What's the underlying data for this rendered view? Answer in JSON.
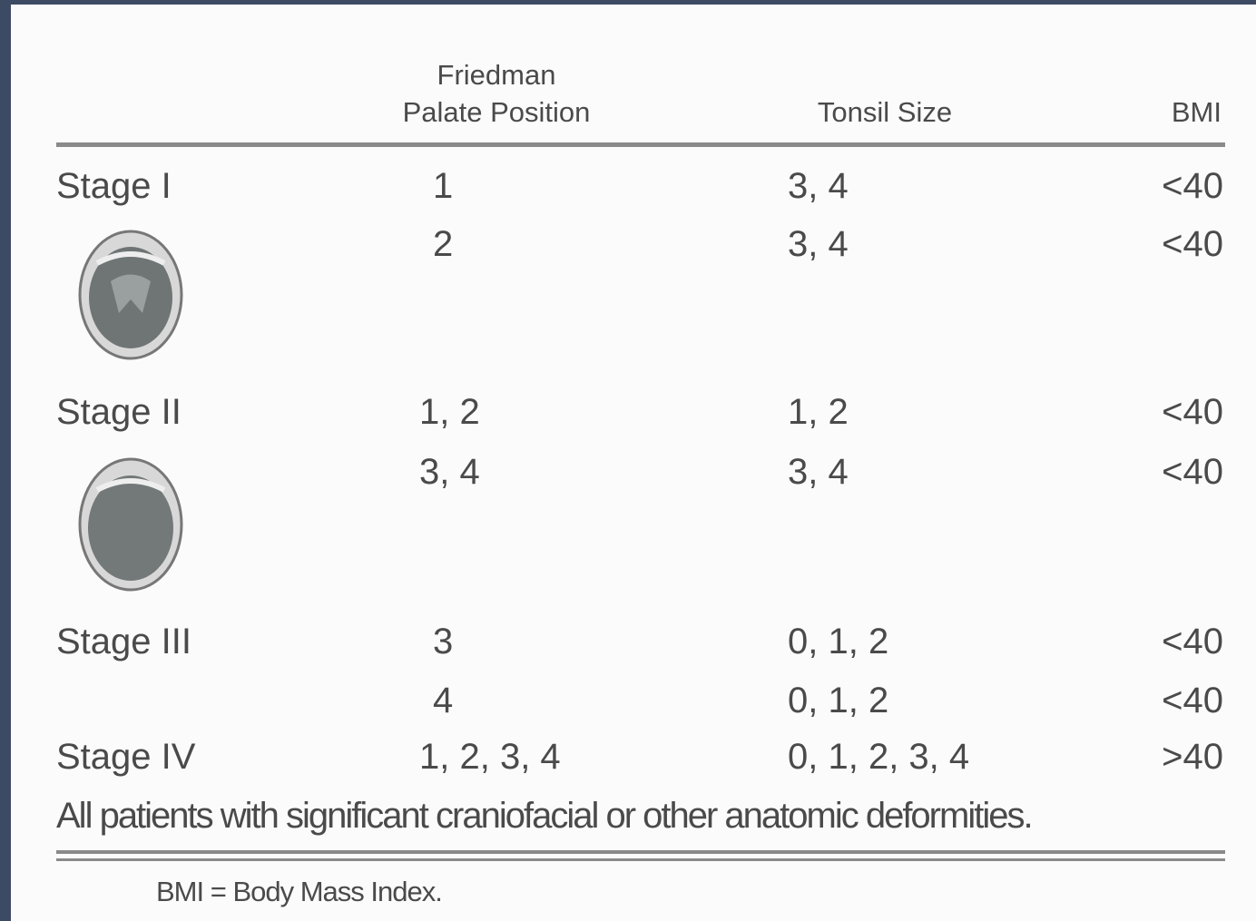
{
  "table": {
    "header": {
      "palate": [
        "Friedman",
        "Palate Position"
      ],
      "tonsil": "Tonsil Size",
      "bmi": "BMI"
    },
    "rows": [
      {
        "stage": "Stage I",
        "palate": "1",
        "tonsil": "3, 4",
        "bmi": "<40"
      },
      {
        "palate": "2",
        "tonsil": "3, 4",
        "bmi": "<40"
      },
      {
        "stage": "Stage II",
        "palate": "1, 2",
        "tonsil": "1, 2",
        "bmi": "<40"
      },
      {
        "palate": "3, 4",
        "tonsil": "3, 4",
        "bmi": "<40"
      },
      {
        "stage": "Stage III",
        "palate": "3",
        "tonsil": "0, 1, 2",
        "bmi": "<40"
      },
      {
        "palate": "4",
        "tonsil": "0, 1, 2",
        "bmi": "<40"
      },
      {
        "stage": "Stage IV",
        "palate": "1, 2, 3, 4",
        "tonsil": "0, 1, 2, 3, 4",
        "bmi": ">40"
      }
    ],
    "note": "All patients with significant craniofacial or other anatomic deformities.",
    "footnote": "BMI = Body Mass Index."
  }
}
